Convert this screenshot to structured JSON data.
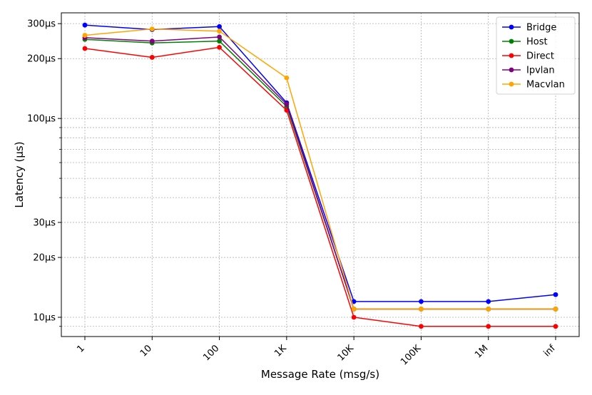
{
  "chart_data": {
    "type": "line",
    "title": "",
    "xlabel": "Message Rate (msg/s)",
    "ylabel": "Latency (µs)",
    "y_scale": "log",
    "ylim": [
      8,
      340
    ],
    "grid": true,
    "legend_position": "top-right",
    "categories": [
      "1",
      "10",
      "100",
      "1K",
      "10K",
      "100K",
      "1M",
      "inf"
    ],
    "y_ticks": [
      {
        "value": 300,
        "label": "300µs"
      },
      {
        "value": 200,
        "label": "200µs"
      },
      {
        "value": 100,
        "label": "100µs"
      },
      {
        "value": 30,
        "label": "30µs"
      },
      {
        "value": 20,
        "label": "20µs"
      },
      {
        "value": 10,
        "label": "10µs"
      }
    ],
    "y_minor_ticks": [
      9,
      40,
      50,
      60,
      70,
      80,
      90
    ],
    "series": [
      {
        "name": "Bridge",
        "color": "#0000ff",
        "values": [
          295,
          280,
          290,
          120,
          12,
          12,
          12,
          13
        ]
      },
      {
        "name": "Host",
        "color": "#008000",
        "values": [
          250,
          240,
          245,
          115,
          11,
          11,
          11,
          11
        ]
      },
      {
        "name": "Direct",
        "color": "#ff0000",
        "values": [
          225,
          203,
          228,
          110,
          10,
          9,
          9,
          9
        ]
      },
      {
        "name": "Ipvlan",
        "color": "#800080",
        "values": [
          255,
          245,
          257,
          118,
          11,
          11,
          11,
          11
        ]
      },
      {
        "name": "Macvlan",
        "color": "#ffa500",
        "values": [
          262,
          282,
          275,
          160,
          11,
          11,
          11,
          11
        ]
      }
    ]
  }
}
